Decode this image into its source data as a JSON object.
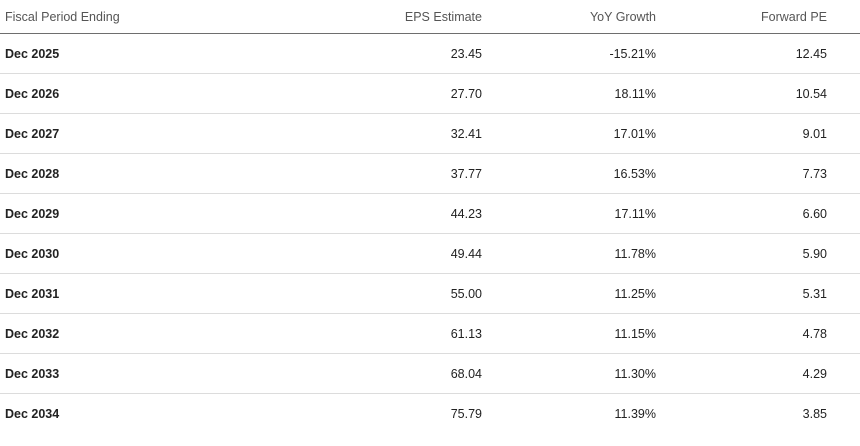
{
  "table": {
    "headers": {
      "period": "Fiscal Period Ending",
      "eps": "EPS Estimate",
      "yoy": "YoY Growth",
      "pe": "Forward PE"
    },
    "rows": [
      {
        "period": "Dec 2025",
        "eps": "23.45",
        "yoy": "-15.21%",
        "pe": "12.45"
      },
      {
        "period": "Dec 2026",
        "eps": "27.70",
        "yoy": "18.11%",
        "pe": "10.54"
      },
      {
        "period": "Dec 2027",
        "eps": "32.41",
        "yoy": "17.01%",
        "pe": "9.01"
      },
      {
        "period": "Dec 2028",
        "eps": "37.77",
        "yoy": "16.53%",
        "pe": "7.73"
      },
      {
        "period": "Dec 2029",
        "eps": "44.23",
        "yoy": "17.11%",
        "pe": "6.60"
      },
      {
        "period": "Dec 2030",
        "eps": "49.44",
        "yoy": "11.78%",
        "pe": "5.90"
      },
      {
        "period": "Dec 2031",
        "eps": "55.00",
        "yoy": "11.25%",
        "pe": "5.31"
      },
      {
        "period": "Dec 2032",
        "eps": "61.13",
        "yoy": "11.15%",
        "pe": "4.78"
      },
      {
        "period": "Dec 2033",
        "eps": "68.04",
        "yoy": "11.30%",
        "pe": "4.29"
      },
      {
        "period": "Dec 2034",
        "eps": "75.79",
        "yoy": "11.39%",
        "pe": "3.85"
      }
    ]
  }
}
